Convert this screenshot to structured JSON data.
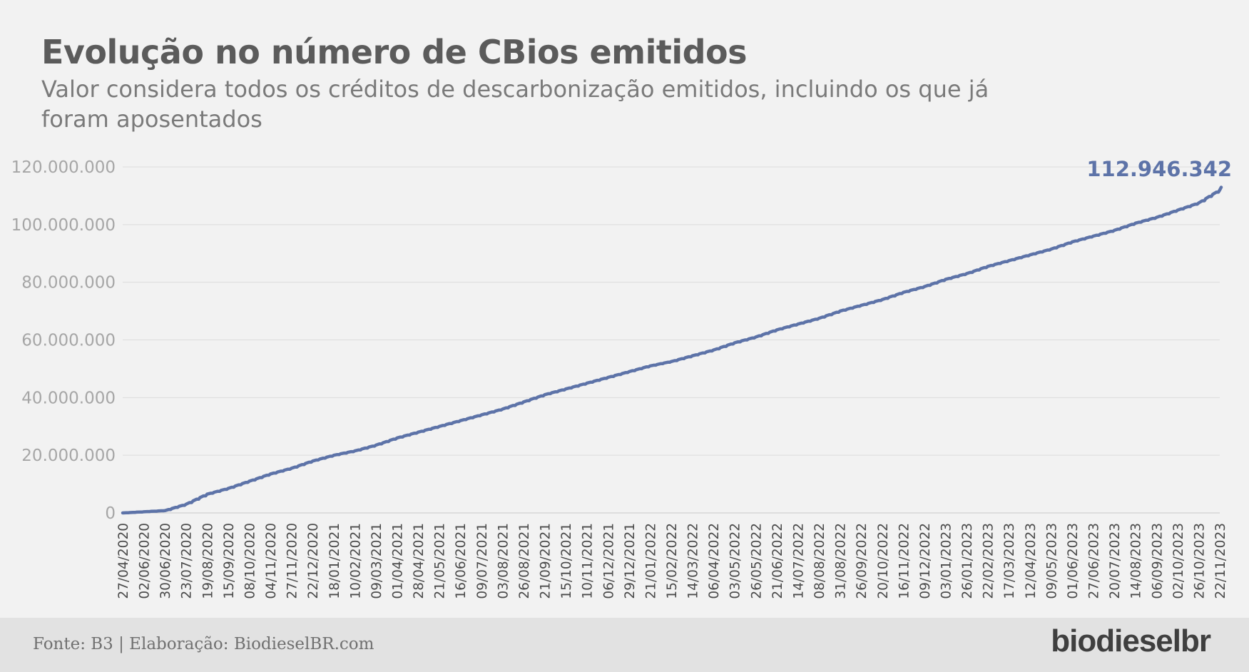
{
  "header": {
    "title": "Evolução no número de CBios emitidos",
    "subtitle": "Valor considera todos os créditos de descarbonização emitidos, incluindo os que já foram aposentados"
  },
  "footer": {
    "source": "Fonte: B3 | Elaboração: BiodieselBR.com",
    "logo": "biodieselbr"
  },
  "colors": {
    "line": "#5d73a8",
    "grid": "#dcdcdc",
    "axis_text": "#a6a6a6",
    "tick_text": "#4a4a4a"
  },
  "chart_data": {
    "type": "line",
    "title": "Evolução no número de CBios emitidos",
    "subtitle": "Valor considera todos os créditos de descarbonização emitidos, incluindo os que já foram aposentados",
    "xlabel": "",
    "ylabel": "",
    "ylim": [
      0,
      120000000
    ],
    "y_ticks": [
      0,
      20000000,
      40000000,
      60000000,
      80000000,
      100000000,
      120000000
    ],
    "y_tick_labels": [
      "0",
      "20.000.000",
      "40.000.000",
      "60.000.000",
      "80.000.000",
      "100.000.000",
      "120.000.000"
    ],
    "grid": true,
    "x_tick_labels": [
      "27/04/2020",
      "02/06/2020",
      "30/06/2020",
      "23/07/2020",
      "19/08/2020",
      "15/09/2020",
      "08/10/2020",
      "04/11/2020",
      "27/11/2020",
      "22/12/2020",
      "18/01/2021",
      "10/02/2021",
      "09/03/2021",
      "01/04/2021",
      "28/04/2021",
      "21/05/2021",
      "16/06/2021",
      "09/07/2021",
      "03/08/2021",
      "26/08/2021",
      "21/09/2021",
      "15/10/2021",
      "10/11/2021",
      "06/12/2021",
      "29/12/2021",
      "21/01/2022",
      "15/02/2022",
      "14/03/2022",
      "06/04/2022",
      "03/05/2022",
      "26/05/2022",
      "21/06/2022",
      "14/07/2022",
      "08/08/2022",
      "31/08/2022",
      "26/09/2022",
      "20/10/2022",
      "16/11/2022",
      "09/12/2022",
      "03/01/2023",
      "26/01/2023",
      "22/02/2023",
      "17/03/2023",
      "12/04/2023",
      "09/05/2023",
      "01/06/2023",
      "27/06/2023",
      "20/07/2023",
      "14/08/2023",
      "06/09/2023",
      "02/10/2023",
      "26/10/2023",
      "22/11/2023"
    ],
    "series": [
      {
        "values": [
          0,
          400000,
          800000,
          3000000,
          6500000,
          8500000,
          11000000,
          13500000,
          15500000,
          18000000,
          20000000,
          21500000,
          23500000,
          26000000,
          28000000,
          30000000,
          32000000,
          34000000,
          36000000,
          38500000,
          41000000,
          43000000,
          45000000,
          47000000,
          49000000,
          51000000,
          52500000,
          54500000,
          56500000,
          59000000,
          61000000,
          63500000,
          65500000,
          67500000,
          70000000,
          72000000,
          74000000,
          76500000,
          78500000,
          81000000,
          83000000,
          85500000,
          87500000,
          89500000,
          91500000,
          94000000,
          96000000,
          98000000,
          100500000,
          102500000,
          105000000,
          107500000,
          112000000
        ],
        "last_value": 112946342,
        "last_label": "112.946.342"
      }
    ]
  }
}
